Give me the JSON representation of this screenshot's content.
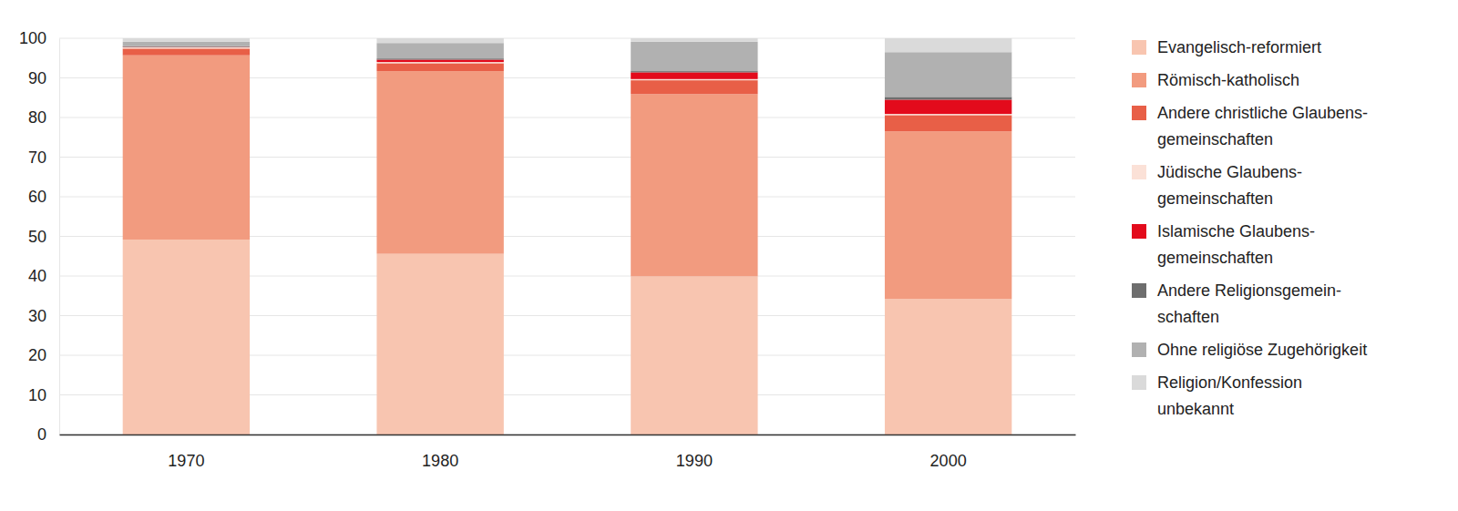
{
  "chart_data": {
    "type": "bar",
    "stacked": true,
    "grid": true,
    "legend": "right",
    "categories": [
      "1970",
      "1980",
      "1990",
      "2000"
    ],
    "ylim": [
      0,
      100
    ],
    "yticks": [
      0,
      10,
      20,
      30,
      40,
      50,
      60,
      70,
      80,
      90,
      100
    ],
    "series": [
      {
        "name": "Evangelisch-reformiert",
        "color": "#f8c5b0",
        "values": [
          49.2,
          45.6,
          39.9,
          34.2
        ]
      },
      {
        "name": "Römisch-katholisch",
        "color": "#f29b7f",
        "values": [
          46.5,
          46.1,
          46.0,
          42.3
        ]
      },
      {
        "name": "Andere christliche Glaubens-\ngemeinschaften",
        "color": "#e85f47",
        "values": [
          1.7,
          2.0,
          3.5,
          4.1
        ]
      },
      {
        "name": "Jüdische Glaubens-\ngemeinschaften",
        "color": "#fbe1d7",
        "values": [
          0.3,
          0.3,
          0.3,
          0.3
        ]
      },
      {
        "name": "Islamische Glaubens-\ngemeinschaften",
        "color": "#e30b1c",
        "values": [
          0.1,
          0.6,
          1.7,
          3.6
        ]
      },
      {
        "name": "Andere Religionsgemein-\nschaften",
        "color": "#6e6e6e",
        "values": [
          0.2,
          0.3,
          0.3,
          0.7
        ]
      },
      {
        "name": "Ohne religiöse Zugehörigkeit",
        "color": "#b1b1b1",
        "values": [
          1.1,
          3.9,
          7.4,
          11.3
        ]
      },
      {
        "name": "Religion/Konfession\nunbekannt",
        "color": "#dadada",
        "values": [
          0.9,
          1.2,
          0.9,
          3.5
        ]
      }
    ]
  }
}
